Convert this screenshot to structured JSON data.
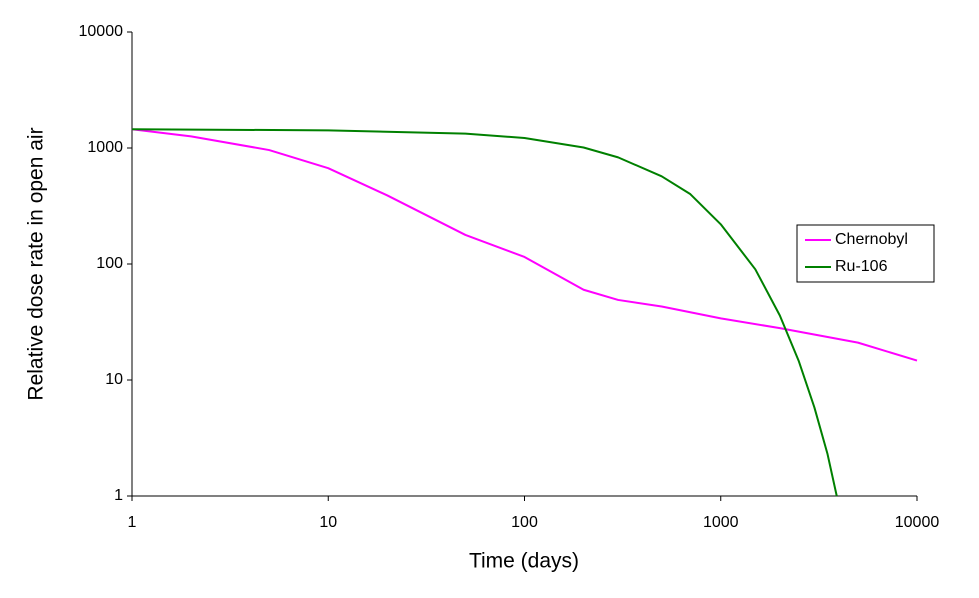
{
  "chart_data": {
    "type": "line",
    "x_label": "Time (days)",
    "y_label": "Relative dose rate in open air",
    "xscale": "log",
    "yscale": "log",
    "xlim": [
      1,
      10000
    ],
    "ylim": [
      1,
      10000
    ],
    "xticks": [
      1,
      10,
      100,
      1000,
      10000
    ],
    "yticks": [
      1,
      10,
      100,
      1000,
      10000
    ],
    "grid": false,
    "legend": "right",
    "series": [
      {
        "name": "Chernobyl",
        "color": "#ff00ff",
        "x": [
          1,
          2,
          5,
          10,
          20,
          50,
          100,
          200,
          300,
          500,
          1000,
          2000,
          5000,
          10000
        ],
        "values": [
          1450,
          1260,
          960,
          670,
          390,
          178,
          115,
          60,
          49,
          43,
          34,
          28,
          21,
          14.7
        ]
      },
      {
        "name": "Ru-106",
        "color": "#008000",
        "x": [
          1,
          10,
          50,
          100,
          200,
          300,
          500,
          700,
          1000,
          1500,
          2000,
          2500,
          3000,
          3500,
          3900
        ],
        "values": [
          1450,
          1420,
          1330,
          1220,
          1010,
          830,
          570,
          400,
          220,
          90,
          36,
          14.5,
          5.8,
          2.3,
          1.0
        ]
      }
    ]
  }
}
